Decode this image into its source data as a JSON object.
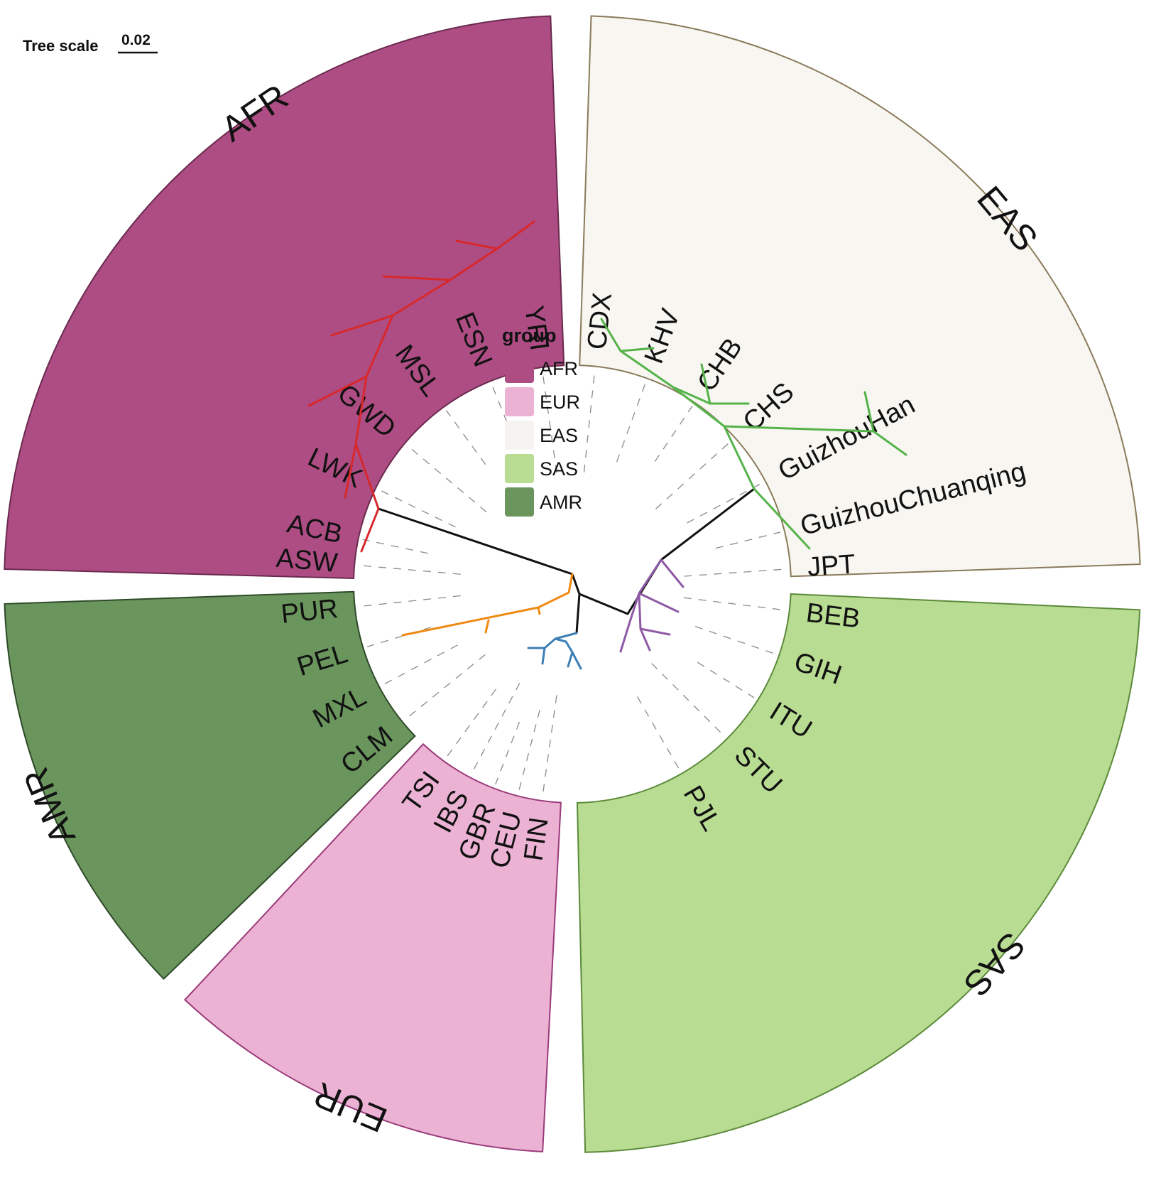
{
  "scale": {
    "label": "Tree scale",
    "value": "0.02"
  },
  "legend": {
    "title": "group",
    "items": [
      {
        "label": "AFR",
        "color": "#ad4d84"
      },
      {
        "label": "EUR",
        "color": "#ecb2d4"
      },
      {
        "label": "EAS",
        "color": "#f5f4f1"
      },
      {
        "label": "SAS",
        "color": "#b8dc92"
      },
      {
        "label": "AMR",
        "color": "#6a955d"
      }
    ]
  },
  "groups": [
    {
      "label": "AFR",
      "fill": "#ad4d84",
      "stroke": "#6a2a4e",
      "branch_color": "#d8282c",
      "tips": [
        "YRI",
        "ESN",
        "MSL",
        "GWD",
        "LWK",
        "ACB",
        "ASW"
      ]
    },
    {
      "label": "EAS",
      "fill": "#f7f6f1",
      "stroke": "#8a7a5a",
      "branch_color": "#55b349",
      "tips": [
        "CDX",
        "KHV",
        "CHB",
        "CHS",
        "GuizhouHan",
        "GuizhouChuanqing",
        "JPT"
      ]
    },
    {
      "label": "SAS",
      "fill": "#b8dc92",
      "stroke": "#5b8a3a",
      "branch_color": "#8e5aa5",
      "tips": [
        "BEB",
        "GIH",
        "ITU",
        "STU",
        "PJL"
      ]
    },
    {
      "label": "EUR",
      "fill": "#ecb2d4",
      "stroke": "#9a3a7a",
      "branch_color": "#3d7fb5",
      "tips": [
        "FIN",
        "CEU",
        "GBR",
        "IBS",
        "TSI"
      ]
    },
    {
      "label": "AMR",
      "fill": "#6a955d",
      "stroke": "#2e4a28",
      "branch_color": "#ef8a14",
      "tips": [
        "CLM",
        "MXL",
        "PEL",
        "PUR"
      ]
    }
  ]
}
